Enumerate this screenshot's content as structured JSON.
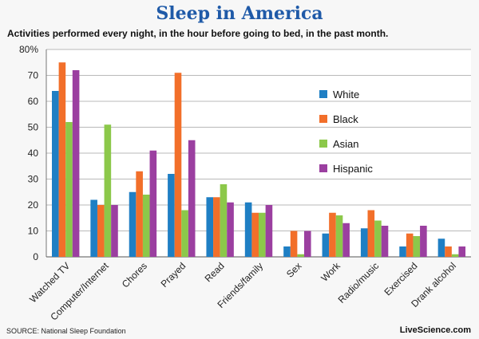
{
  "header": {
    "title": "Sleep in America",
    "subtitle": "Activities performed every night, in the hour before going to bed, in the past month."
  },
  "footer": {
    "source": "SOURCE: National Sleep Foundation",
    "credit": "LiveScience.com"
  },
  "chart_data": {
    "type": "bar",
    "title": "Sleep in America",
    "subtitle": "Activities performed every night, in the hour before going to bed, in the past month.",
    "categories": [
      "Watched TV",
      "Computer/Internet",
      "Chores",
      "Prayed",
      "Read",
      "Friends/family",
      "Sex",
      "Work",
      "Radio/music",
      "Exercised",
      "Drank alcohol"
    ],
    "series": [
      {
        "name": "White",
        "color": "#1f7fc4",
        "values": [
          64,
          22,
          25,
          32,
          23,
          21,
          4,
          9,
          11,
          4,
          7
        ]
      },
      {
        "name": "Black",
        "color": "#f26f2a",
        "values": [
          75,
          20,
          33,
          71,
          23,
          17,
          10,
          17,
          18,
          9,
          4
        ]
      },
      {
        "name": "Asian",
        "color": "#8cc84a",
        "values": [
          52,
          51,
          24,
          18,
          28,
          17,
          1,
          16,
          14,
          8,
          1
        ]
      },
      {
        "name": "Hispanic",
        "color": "#9b3fa0",
        "values": [
          72,
          20,
          41,
          45,
          21,
          20,
          10,
          13,
          12,
          12,
          4
        ]
      }
    ],
    "yticks": [
      "0",
      "10",
      "20",
      "30",
      "40",
      "50",
      "60",
      "70",
      "80%"
    ],
    "ylim": [
      0,
      80
    ],
    "grid": true,
    "legend_position": "top-right"
  }
}
